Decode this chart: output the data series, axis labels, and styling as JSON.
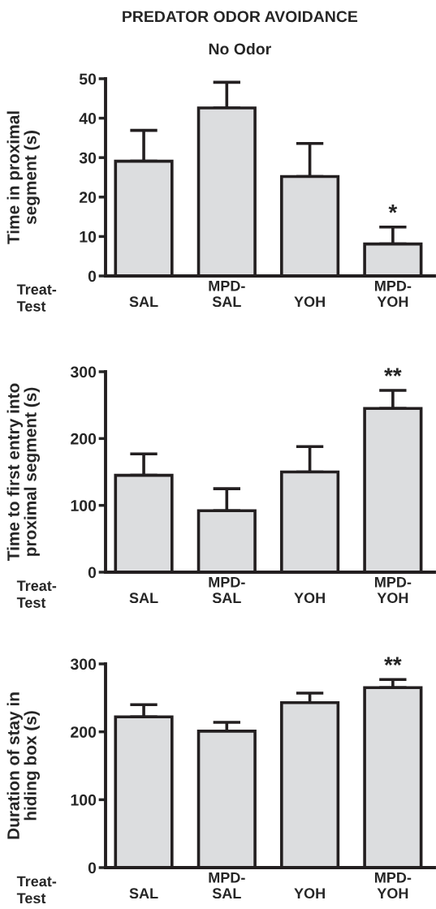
{
  "chart_data": [
    {
      "type": "bar",
      "title": "PREDATOR ODOR AVOIDANCE",
      "subtitle": "No Odor",
      "xlabel": "Treat-\nTest",
      "ylabel": "Time in proximal\nsegment (s)",
      "categories": [
        "SAL",
        "MPD-\nSAL",
        "YOH",
        "MPD-\nYOH"
      ],
      "values": [
        29.1,
        42.6,
        25.2,
        8.1
      ],
      "errors": [
        [
          29.1,
          36.9
        ],
        [
          42.6,
          49.1
        ],
        [
          25.2,
          33.6
        ],
        [
          8.1,
          12.4
        ]
      ],
      "color": "#dcdddf",
      "ylim": [
        0,
        50
      ],
      "yticks": [
        0,
        10,
        20,
        30,
        40,
        50
      ],
      "grid": false,
      "annotations": [
        {
          "text": "*",
          "x": "MPD-\nYOH",
          "y": 12.4
        }
      ]
    },
    {
      "type": "bar",
      "xlabel": "Treat-\nTest",
      "ylabel": "Time to first entry into\nproximal segment (s)",
      "categories": [
        "SAL",
        "MPD-\nSAL",
        "YOH",
        "MPD-\nYOH"
      ],
      "values": [
        145,
        92,
        150,
        245
      ],
      "errors": [
        [
          145,
          177
        ],
        [
          92,
          125
        ],
        [
          150,
          188
        ],
        [
          245,
          272
        ]
      ],
      "color": "#dcdddf",
      "ylim": [
        0,
        300
      ],
      "yticks": [
        0,
        100,
        200,
        300
      ],
      "grid": false,
      "annotations": [
        {
          "text": "**",
          "x": "MPD-\nYOH",
          "y": 272
        }
      ]
    },
    {
      "type": "bar",
      "xlabel": "Treat-\nTest",
      "ylabel": "Duration of stay in\nhiding box (s)",
      "categories": [
        "SAL",
        "MPD-\nSAL",
        "YOH",
        "MPD-\nYOH"
      ],
      "values": [
        222,
        201,
        243,
        265
      ],
      "errors": [
        [
          222,
          240
        ],
        [
          201,
          214
        ],
        [
          243,
          257
        ],
        [
          265,
          277
        ]
      ],
      "color": "#dcdddf",
      "ylim": [
        0,
        300
      ],
      "yticks": [
        0,
        100,
        200,
        300
      ],
      "grid": false,
      "annotations": [
        {
          "text": "**",
          "x": "MPD-\nYOH",
          "y": 277
        }
      ]
    }
  ]
}
